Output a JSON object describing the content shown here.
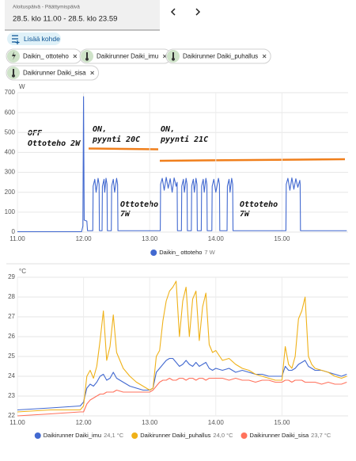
{
  "header": {
    "date_label": "Aloituspäivä - Päättymispäivä",
    "date_value": "28.5. klo 11.00 - 28.5. klo 23.59"
  },
  "add_button": "Lisää kohde",
  "chips": [
    "Daikin_ ottoteho",
    "Daikirunner Daiki_imu",
    "Daikirunner Daiki_puhallus",
    "Daikirunner Daiki_sisa"
  ],
  "chart_data": [
    {
      "type": "line",
      "y_label": "W",
      "annotations": [
        [
          "OFF",
          "Ottoteho 2W"
        ],
        [
          "ON,",
          "pyynti 20C"
        ],
        [
          "ON,",
          "pyynti 21C"
        ],
        [
          "Ottoteho",
          "7W"
        ],
        [
          "Ottoteho",
          "7W"
        ]
      ],
      "xlim": [
        11,
        16
      ],
      "xticks": [
        {
          "value": 11,
          "label": "11.00"
        },
        {
          "value": 12,
          "label": "12.00"
        },
        {
          "value": 13,
          "label": "13.00"
        },
        {
          "value": 14,
          "label": "14.00"
        },
        {
          "value": 15,
          "label": "15.00"
        }
      ],
      "ylim": [
        0,
        700
      ],
      "yticks": [
        0,
        100,
        200,
        300,
        400,
        500,
        600,
        700
      ],
      "grid": true,
      "x": [
        11.0,
        11.97,
        11.99,
        12.0,
        12.01,
        12.05,
        12.06,
        12.14,
        12.145,
        12.17,
        12.19,
        12.22,
        12.235,
        12.24,
        12.28,
        12.285,
        12.31,
        12.32,
        12.34,
        12.355,
        12.36,
        12.42,
        12.425,
        12.45,
        12.47,
        12.5,
        12.515,
        12.52,
        13.16,
        13.165,
        13.19,
        13.22,
        13.25,
        13.28,
        13.31,
        13.34,
        13.37,
        13.4,
        13.415,
        13.42,
        13.48,
        13.485,
        13.51,
        13.525,
        13.55,
        13.565,
        13.57,
        13.63,
        13.635,
        13.66,
        13.675,
        13.7,
        13.715,
        13.72,
        13.78,
        13.785,
        13.81,
        13.825,
        13.85,
        13.865,
        13.87,
        13.94,
        13.945,
        13.97,
        14.0,
        14.04,
        14.055,
        14.06,
        14.17,
        14.175,
        14.2,
        14.215,
        14.24,
        14.255,
        14.26,
        15.06,
        15.065,
        15.09,
        15.12,
        15.15,
        15.18,
        15.21,
        15.24,
        15.27,
        15.275,
        15.28,
        15.98
      ],
      "series": [
        {
          "name": "Daikin_ ottoteho",
          "current": "7 W",
          "color": "#4269d0",
          "values": [
            2,
            2,
            30,
            680,
            60,
            55,
            7,
            7,
            230,
            265,
            200,
            270,
            240,
            7,
            7,
            230,
            265,
            200,
            270,
            240,
            7,
            7,
            230,
            265,
            200,
            270,
            240,
            7,
            7,
            240,
            270,
            210,
            275,
            220,
            268,
            200,
            272,
            230,
            250,
            7,
            7,
            230,
            265,
            200,
            270,
            240,
            7,
            7,
            230,
            265,
            200,
            270,
            240,
            7,
            7,
            230,
            265,
            200,
            270,
            240,
            7,
            7,
            230,
            265,
            200,
            270,
            240,
            7,
            7,
            230,
            265,
            200,
            270,
            240,
            7,
            7,
            240,
            270,
            210,
            272,
            215,
            268,
            225,
            260,
            240,
            7,
            7
          ]
        }
      ]
    },
    {
      "type": "line",
      "y_label": "°C",
      "xlim": [
        11,
        16
      ],
      "xticks": [
        {
          "value": 11,
          "label": "11.00"
        },
        {
          "value": 12,
          "label": "12.00"
        },
        {
          "value": 13,
          "label": "13.00"
        },
        {
          "value": 14,
          "label": "14.00"
        },
        {
          "value": 15,
          "label": "15.00"
        }
      ],
      "ylim": [
        22,
        29
      ],
      "yticks": [
        22,
        23,
        24,
        25,
        26,
        27,
        28,
        29
      ],
      "grid": true,
      "x": [
        11.0,
        11.5,
        11.95,
        12.0,
        12.05,
        12.1,
        12.15,
        12.2,
        12.25,
        12.3,
        12.35,
        12.4,
        12.45,
        12.5,
        12.6,
        12.7,
        12.8,
        12.9,
        13.0,
        13.05,
        13.1,
        13.15,
        13.2,
        13.25,
        13.3,
        13.35,
        13.4,
        13.45,
        13.5,
        13.55,
        13.6,
        13.65,
        13.7,
        13.75,
        13.8,
        13.85,
        13.9,
        13.95,
        14.0,
        14.1,
        14.2,
        14.3,
        14.4,
        14.5,
        14.6,
        14.7,
        14.8,
        14.9,
        15.0,
        15.05,
        15.1,
        15.15,
        15.2,
        15.25,
        15.3,
        15.35,
        15.4,
        15.45,
        15.5,
        15.6,
        15.7,
        15.8,
        15.9,
        15.98
      ],
      "series": [
        {
          "name": "Daikirunner Daiki_imu",
          "current": "24,1 °C",
          "color": "#4269d0",
          "values": [
            22.3,
            22.4,
            22.5,
            22.7,
            23.4,
            23.6,
            23.5,
            23.7,
            24.0,
            24.1,
            23.8,
            23.9,
            24.2,
            23.9,
            23.7,
            23.5,
            23.4,
            23.3,
            23.3,
            23.4,
            24.2,
            24.4,
            24.6,
            24.8,
            24.9,
            24.9,
            24.7,
            24.5,
            24.6,
            24.8,
            24.6,
            24.5,
            24.7,
            24.5,
            24.6,
            24.7,
            24.4,
            24.3,
            24.4,
            24.3,
            24.4,
            24.2,
            24.3,
            24.2,
            24.1,
            24.1,
            24.0,
            24.0,
            24.0,
            24.5,
            24.3,
            24.3,
            24.4,
            24.6,
            24.7,
            24.8,
            24.5,
            24.4,
            24.3,
            24.3,
            24.2,
            24.1,
            24.0,
            24.1
          ]
        },
        {
          "name": "Daikirunner Daiki_puhallus",
          "current": "24,0 °C",
          "color": "#efb118",
          "values": [
            22.2,
            22.3,
            22.3,
            22.5,
            24.0,
            24.3,
            23.9,
            24.5,
            25.8,
            27.3,
            24.8,
            25.5,
            27.1,
            25.2,
            24.4,
            24.0,
            23.7,
            23.5,
            23.3,
            23.4,
            25.0,
            25.3,
            26.8,
            27.8,
            28.3,
            28.5,
            28.8,
            26.0,
            27.8,
            28.5,
            26.0,
            27.9,
            28.3,
            25.8,
            27.5,
            28.2,
            25.6,
            25.2,
            25.3,
            24.8,
            24.9,
            24.6,
            24.4,
            24.3,
            24.1,
            24.0,
            23.9,
            23.8,
            23.8,
            25.5,
            24.6,
            24.4,
            25.0,
            26.9,
            27.3,
            28.0,
            25.0,
            24.6,
            24.4,
            24.3,
            24.2,
            24.0,
            23.9,
            24.0
          ]
        },
        {
          "name": "Daikirunner Daiki_sisa",
          "current": "23,7 °C",
          "color": "#ff725c",
          "values": [
            22.0,
            22.1,
            22.2,
            22.2,
            22.6,
            22.8,
            22.9,
            23.0,
            23.1,
            23.1,
            23.2,
            23.2,
            23.2,
            23.3,
            23.2,
            23.2,
            23.2,
            23.2,
            23.2,
            23.3,
            23.5,
            23.7,
            23.8,
            23.8,
            23.9,
            23.8,
            23.8,
            23.9,
            23.9,
            23.8,
            23.9,
            23.9,
            23.8,
            23.9,
            23.9,
            23.8,
            23.9,
            23.9,
            23.9,
            23.9,
            23.8,
            23.9,
            23.8,
            23.8,
            23.7,
            23.8,
            23.8,
            23.7,
            23.7,
            23.8,
            23.8,
            23.7,
            23.8,
            23.8,
            23.8,
            23.7,
            23.7,
            23.7,
            23.7,
            23.6,
            23.7,
            23.6,
            23.6,
            23.7
          ]
        }
      ]
    }
  ]
}
